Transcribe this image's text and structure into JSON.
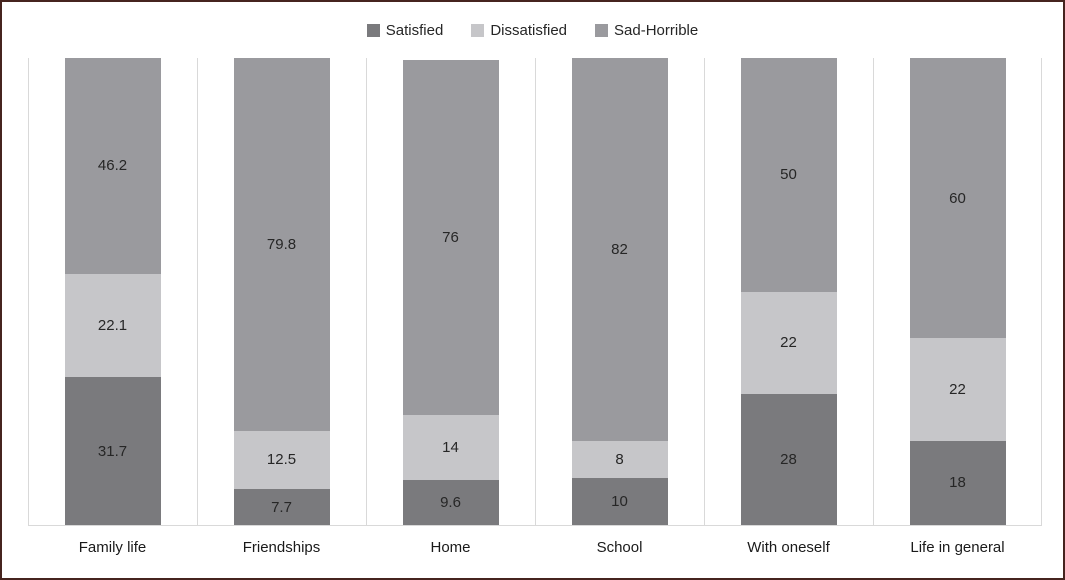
{
  "chart_data": {
    "type": "bar",
    "stacked": true,
    "orientation": "vertical",
    "title": "",
    "xlabel": "",
    "ylabel": "",
    "ylim": [
      0,
      100
    ],
    "axes_ticks_visible": false,
    "grid": "vertical-category-gridlines",
    "legend_position": "top-center",
    "data_labels": "inside-center",
    "categories": [
      "Family life",
      "Friendships",
      "Home",
      "School",
      "With oneself",
      "Life in general"
    ],
    "series": [
      {
        "name": "Satisfied",
        "color": "#7a7a7d",
        "values": [
          31.7,
          7.7,
          9.6,
          10,
          28,
          18
        ]
      },
      {
        "name": "Dissatisfied",
        "color": "#c6c6c9",
        "values": [
          22.1,
          12.5,
          14,
          8,
          22,
          22
        ]
      },
      {
        "name": "Sad-Horrible",
        "color": "#9a9a9e",
        "values": [
          46.2,
          79.8,
          76,
          82,
          50,
          60
        ]
      }
    ]
  },
  "colors": {
    "frame_border": "#46241f",
    "gridline": "#d9d9d9",
    "axis_line": "#d9d9d9",
    "data_label_text": "#262626",
    "category_label_text": "#1a1a1a",
    "background": "#ffffff"
  }
}
